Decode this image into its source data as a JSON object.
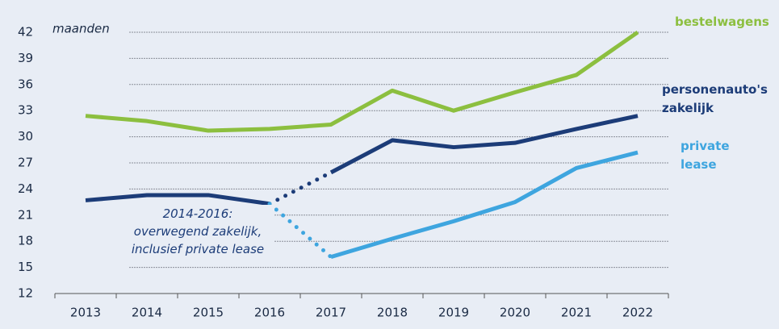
{
  "chart_data": {
    "type": "line",
    "y_unit_label": "maanden",
    "categories": [
      "2013",
      "2014",
      "2015",
      "2016",
      "2017",
      "2018",
      "2019",
      "2020",
      "2021",
      "2022"
    ],
    "series": [
      {
        "name": "bestelwagens",
        "color": "#8cbf3f",
        "values": [
          32.4,
          31.8,
          30.7,
          30.9,
          31.4,
          35.3,
          33.0,
          35.1,
          37.1,
          42.0
        ],
        "dotted_segments": []
      },
      {
        "name": "personenauto's zakelijk",
        "color": "#1c3c78",
        "values": [
          22.7,
          23.3,
          23.3,
          22.3,
          25.9,
          29.6,
          28.8,
          29.3,
          30.9,
          32.4
        ],
        "dotted_segments": [
          3
        ]
      },
      {
        "name": "private lease",
        "color": "#3ea5df",
        "values": [
          null,
          null,
          null,
          22.3,
          16.2,
          18.3,
          20.3,
          22.5,
          26.4,
          28.2
        ],
        "dotted_segments": [
          3
        ]
      }
    ],
    "annotation": [
      "2014-2016:",
      "overwegend zakelijk,",
      "inclusief private lease"
    ],
    "ylim": [
      12,
      42
    ],
    "yticks": [
      12,
      15,
      18,
      21,
      24,
      27,
      30,
      33,
      36,
      39,
      42
    ],
    "grid": true
  }
}
